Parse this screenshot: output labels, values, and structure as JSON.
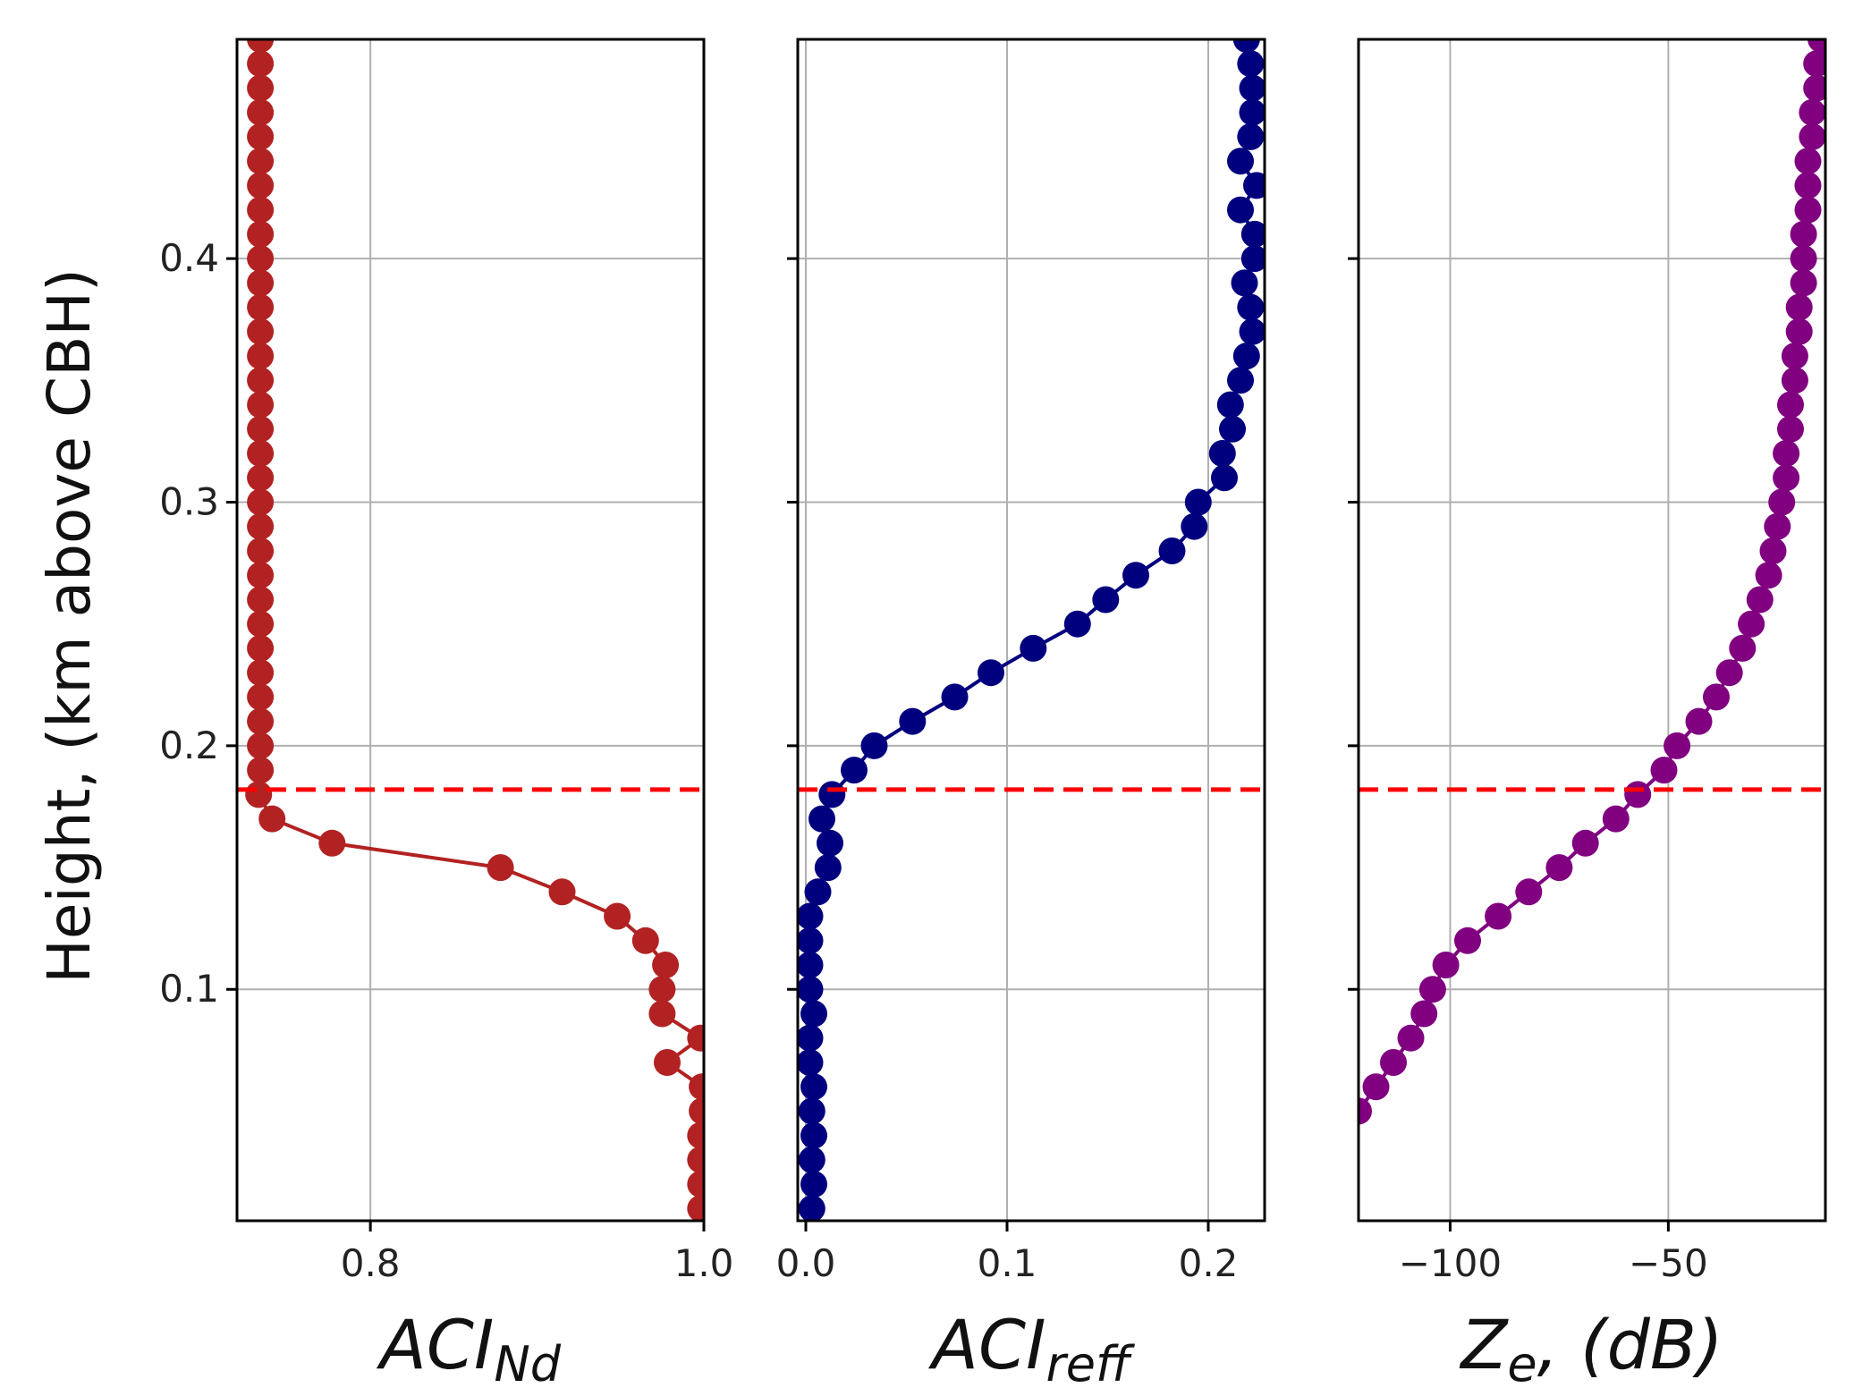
{
  "chart_data": {
    "type": "line",
    "shared_ylabel": "Height, (km above CBH)",
    "ylim": [
      0.005,
      0.49
    ],
    "yticks": [
      0.1,
      0.2,
      0.3,
      0.4
    ],
    "ytick_labels": [
      "0.1",
      "0.2",
      "0.3",
      "0.4"
    ],
    "cloud_base_marker": {
      "value": 0.182,
      "color": "#ff0000",
      "style": "dashed"
    },
    "panels": [
      {
        "xlabel_main": "ACI",
        "xlabel_sub": "Nd",
        "color": "#b22222",
        "xlim": [
          0.72,
          1.0
        ],
        "xticks": [
          0.8,
          1.0
        ],
        "xtick_labels": [
          "0.8",
          "1.0"
        ],
        "y": [
          0.01,
          0.02,
          0.03,
          0.04,
          0.05,
          0.06,
          0.07,
          0.08,
          0.09,
          0.1,
          0.11,
          0.12,
          0.13,
          0.14,
          0.15,
          0.16,
          0.17,
          0.18,
          0.19,
          0.2,
          0.21,
          0.22,
          0.23,
          0.24,
          0.25,
          0.26,
          0.27,
          0.28,
          0.29,
          0.3,
          0.31,
          0.32,
          0.33,
          0.34,
          0.35,
          0.36,
          0.37,
          0.38,
          0.39,
          0.4,
          0.41,
          0.42,
          0.43,
          0.44,
          0.45,
          0.46,
          0.47,
          0.48,
          0.49
        ],
        "x": [
          0.998,
          0.998,
          0.998,
          0.998,
          0.999,
          0.999,
          0.978,
          0.998,
          0.975,
          0.975,
          0.977,
          0.965,
          0.948,
          0.915,
          0.878,
          0.777,
          0.741,
          0.733,
          0.734,
          0.734,
          0.734,
          0.734,
          0.734,
          0.734,
          0.734,
          0.734,
          0.734,
          0.734,
          0.734,
          0.734,
          0.734,
          0.734,
          0.734,
          0.734,
          0.734,
          0.734,
          0.734,
          0.734,
          0.734,
          0.734,
          0.734,
          0.734,
          0.734,
          0.734,
          0.734,
          0.734,
          0.734,
          0.734,
          0.734
        ]
      },
      {
        "xlabel_main": "ACI",
        "xlabel_sub": "reff",
        "color": "#00007f",
        "xlim": [
          -0.004,
          0.228
        ],
        "xticks": [
          0.0,
          0.1,
          0.2
        ],
        "xtick_labels": [
          "0.0",
          "0.1",
          "0.2"
        ],
        "y": [
          0.01,
          0.02,
          0.03,
          0.04,
          0.05,
          0.06,
          0.07,
          0.08,
          0.09,
          0.1,
          0.11,
          0.12,
          0.13,
          0.14,
          0.15,
          0.16,
          0.17,
          0.18,
          0.19,
          0.2,
          0.21,
          0.22,
          0.23,
          0.24,
          0.25,
          0.26,
          0.27,
          0.28,
          0.29,
          0.3,
          0.31,
          0.32,
          0.33,
          0.34,
          0.35,
          0.36,
          0.37,
          0.38,
          0.39,
          0.4,
          0.41,
          0.42,
          0.43,
          0.44,
          0.45,
          0.46,
          0.47,
          0.48,
          0.49
        ],
        "x": [
          0.003,
          0.004,
          0.003,
          0.004,
          0.003,
          0.004,
          0.002,
          0.002,
          0.004,
          0.002,
          0.002,
          0.002,
          0.002,
          0.006,
          0.011,
          0.012,
          0.008,
          0.013,
          0.024,
          0.034,
          0.053,
          0.074,
          0.092,
          0.113,
          0.135,
          0.149,
          0.164,
          0.182,
          0.193,
          0.195,
          0.208,
          0.207,
          0.212,
          0.211,
          0.216,
          0.219,
          0.222,
          0.221,
          0.218,
          0.223,
          0.223,
          0.216,
          0.224,
          0.216,
          0.221,
          0.222,
          0.222,
          0.221,
          0.219
        ]
      },
      {
        "xlabel_main": "Z",
        "xlabel_sub": "e",
        "xlabel_tail": ", (dB)",
        "color": "#800080",
        "xlim": [
          -121,
          -14
        ],
        "xticks": [
          -100,
          -50
        ],
        "xtick_labels": [
          "−100",
          "−50"
        ],
        "y": [
          0.05,
          0.06,
          0.07,
          0.08,
          0.09,
          0.1,
          0.11,
          0.12,
          0.13,
          0.14,
          0.15,
          0.16,
          0.17,
          0.18,
          0.19,
          0.2,
          0.21,
          0.22,
          0.23,
          0.24,
          0.25,
          0.26,
          0.27,
          0.28,
          0.29,
          0.3,
          0.31,
          0.32,
          0.33,
          0.34,
          0.35,
          0.36,
          0.37,
          0.38,
          0.39,
          0.4,
          0.41,
          0.42,
          0.43,
          0.44,
          0.45,
          0.46,
          0.47,
          0.48,
          0.49
        ],
        "x": [
          -121,
          -117,
          -113,
          -109,
          -106,
          -104,
          -101,
          -96,
          -89,
          -82,
          -75,
          -69,
          -62,
          -57,
          -51,
          -48,
          -43,
          -39,
          -36,
          -33,
          -31,
          -29,
          -27,
          -26,
          -25,
          -24,
          -23,
          -23,
          -22,
          -22,
          -21,
          -21,
          -20,
          -20,
          -19,
          -19,
          -19,
          -18,
          -18,
          -18,
          -17,
          -17,
          -16,
          -16,
          -15
        ]
      }
    ]
  }
}
